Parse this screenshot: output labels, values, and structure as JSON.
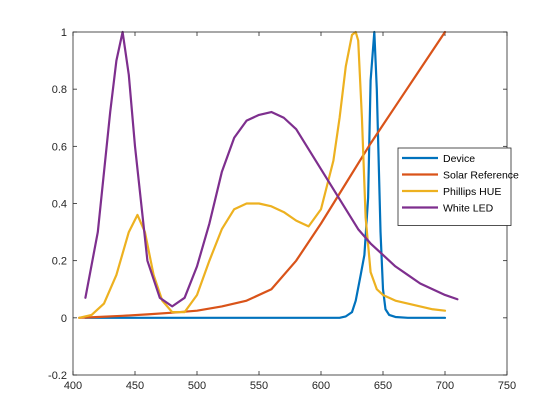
{
  "chart_data": {
    "type": "line",
    "title": "",
    "xlabel": "",
    "ylabel": "",
    "xlim": [
      400,
      750
    ],
    "ylim": [
      -0.2,
      1
    ],
    "xticks": [
      400,
      450,
      500,
      550,
      600,
      650,
      700,
      750
    ],
    "yticks": [
      -0.2,
      0,
      0.2,
      0.4,
      0.6,
      0.8,
      1
    ],
    "grid": false,
    "legend_position": "right",
    "series": [
      {
        "name": "Device",
        "color": "#0072BD",
        "x": [
          410,
          440,
          480,
          520,
          560,
          600,
          615,
          620,
          625,
          628,
          632,
          635,
          638,
          640,
          643,
          645,
          648,
          650,
          652,
          655,
          660,
          670,
          700
        ],
        "y": [
          0,
          0,
          0,
          0,
          0,
          0,
          0,
          0.005,
          0.02,
          0.06,
          0.15,
          0.22,
          0.42,
          0.83,
          1.0,
          0.8,
          0.3,
          0.1,
          0.03,
          0.01,
          0.003,
          0,
          0
        ]
      },
      {
        "name": "Solar Reference",
        "color": "#D95319",
        "x": [
          405,
          420,
          440,
          460,
          480,
          500,
          520,
          540,
          560,
          580,
          600,
          620,
          640,
          660,
          680,
          700
        ],
        "y": [
          0.0,
          0.003,
          0.007,
          0.012,
          0.018,
          0.025,
          0.04,
          0.06,
          0.1,
          0.2,
          0.33,
          0.47,
          0.61,
          0.74,
          0.87,
          1.0
        ]
      },
      {
        "name": "Phillips HUE",
        "color": "#EDB120",
        "x": [
          405,
          415,
          425,
          435,
          445,
          452,
          458,
          465,
          472,
          480,
          490,
          500,
          510,
          520,
          530,
          540,
          550,
          560,
          570,
          580,
          590,
          600,
          610,
          615,
          620,
          625,
          628,
          630,
          633,
          636,
          640,
          645,
          650,
          660,
          670,
          680,
          690,
          700
        ],
        "y": [
          0.0,
          0.01,
          0.05,
          0.15,
          0.3,
          0.36,
          0.3,
          0.15,
          0.06,
          0.02,
          0.02,
          0.08,
          0.2,
          0.31,
          0.38,
          0.4,
          0.4,
          0.39,
          0.37,
          0.34,
          0.32,
          0.38,
          0.55,
          0.7,
          0.88,
          0.99,
          1.0,
          0.97,
          0.7,
          0.35,
          0.16,
          0.1,
          0.08,
          0.06,
          0.05,
          0.04,
          0.03,
          0.025
        ]
      },
      {
        "name": "White LED",
        "color": "#7E2F8E",
        "x": [
          410,
          420,
          430,
          435,
          440,
          445,
          450,
          460,
          470,
          480,
          490,
          500,
          510,
          520,
          530,
          540,
          550,
          560,
          570,
          580,
          590,
          600,
          610,
          620,
          630,
          640,
          650,
          660,
          670,
          680,
          690,
          700,
          710
        ],
        "y": [
          0.07,
          0.3,
          0.72,
          0.9,
          1.0,
          0.85,
          0.6,
          0.2,
          0.07,
          0.04,
          0.07,
          0.18,
          0.33,
          0.51,
          0.63,
          0.69,
          0.71,
          0.72,
          0.7,
          0.66,
          0.59,
          0.52,
          0.45,
          0.38,
          0.31,
          0.26,
          0.22,
          0.18,
          0.15,
          0.12,
          0.1,
          0.08,
          0.065
        ]
      }
    ]
  }
}
